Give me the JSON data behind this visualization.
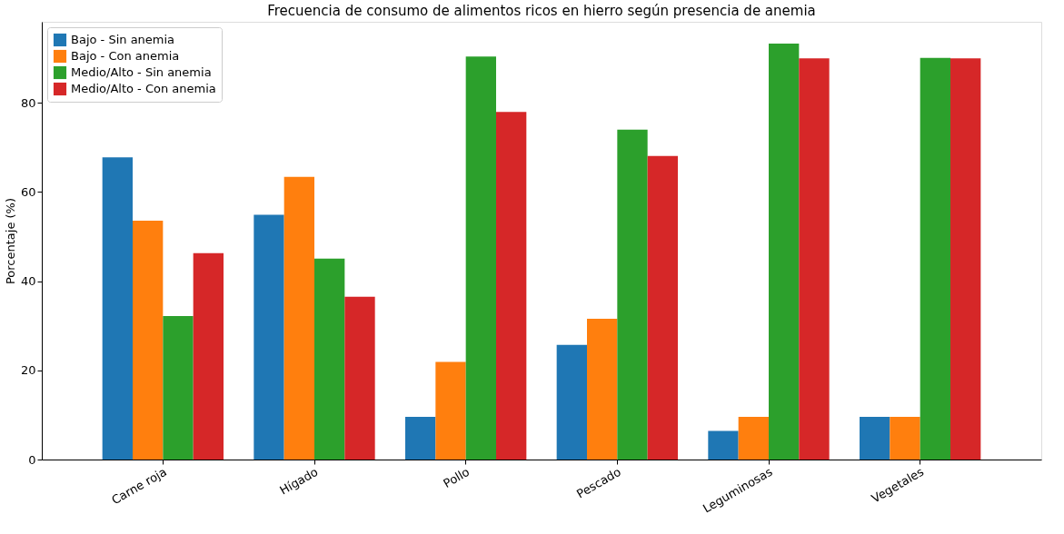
{
  "chart_data": {
    "type": "bar",
    "title": "Frecuencia de consumo de alimentos ricos en hierro según presencia de anemia",
    "ylabel": "Porcentaje (%)",
    "categories": [
      "Carne roja",
      "Hígado",
      "Pollo",
      "Pescado",
      "Leguminosas",
      "Vegetales"
    ],
    "series": [
      {
        "name": "Bajo - Sin anemia",
        "color": "#1f77b4",
        "values": [
          67.8,
          54.9,
          9.6,
          25.7,
          6.4,
          9.6
        ]
      },
      {
        "name": "Bajo - Con anemia",
        "color": "#ff7f0e",
        "values": [
          53.6,
          63.4,
          21.9,
          31.6,
          9.6,
          9.6
        ]
      },
      {
        "name": "Medio/Alto - Sin anemia",
        "color": "#2ca02c",
        "values": [
          32.2,
          45.1,
          90.4,
          74.0,
          93.3,
          90.1
        ]
      },
      {
        "name": "Medio/Alto - Con anemia",
        "color": "#d62728",
        "values": [
          46.3,
          36.5,
          78.0,
          68.1,
          90.0,
          90.0
        ]
      }
    ],
    "ylim": [
      0,
      98.2
    ],
    "yticks": [
      0,
      20,
      40,
      60,
      80
    ],
    "grid": false,
    "legend": "top left"
  }
}
